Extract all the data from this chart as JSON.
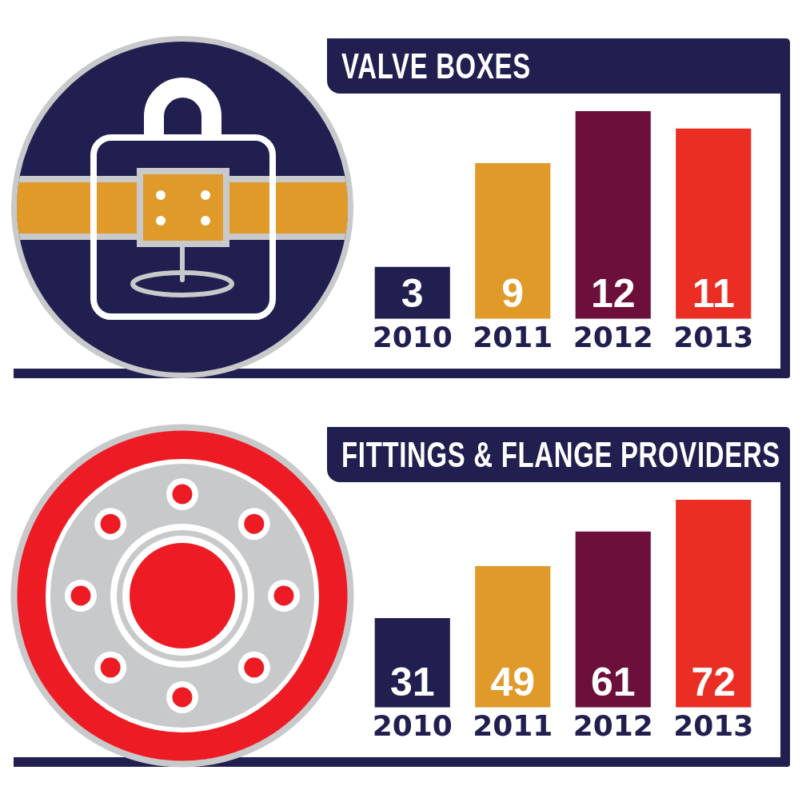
{
  "chart_data": [
    {
      "type": "bar",
      "title": "VALVE BOXES",
      "categories": [
        "2010",
        "2011",
        "2012",
        "2013"
      ],
      "values": [
        3,
        9,
        12,
        11
      ],
      "colors": [
        "#201f4f",
        "#df9a2a",
        "#6d0f3b",
        "#eb2e24"
      ],
      "data_labels": true,
      "tick_labels": "x"
    },
    {
      "type": "bar",
      "title": "FITTINGS & FLANGE PROVIDERS",
      "categories": [
        "2010",
        "2011",
        "2012",
        "2013"
      ],
      "values": [
        31,
        49,
        61,
        72
      ],
      "colors": [
        "#201f4f",
        "#df9a2a",
        "#6d0f3b",
        "#eb2e24"
      ],
      "data_labels": true,
      "tick_labels": "x"
    }
  ]
}
